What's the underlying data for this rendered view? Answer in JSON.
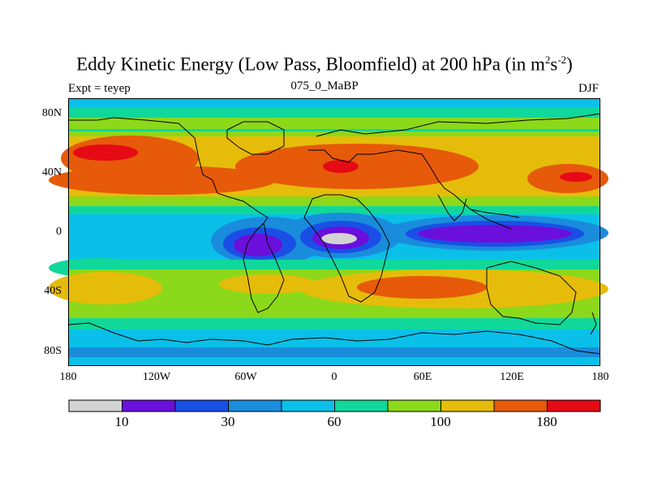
{
  "title": {
    "main": "Eddy Kinetic Energy (Low Pass, Bloomfield) at 200 hPa (in m",
    "sup1": "2",
    "mid": "s",
    "sup2": "-2",
    "close": ")"
  },
  "labels": {
    "left": "Expt = teyep",
    "center": "075_0_MaBP",
    "right": "DJF"
  },
  "axes": {
    "y_ticks": [
      "80N",
      "40N",
      "0",
      "40S",
      "80S"
    ],
    "x_ticks": [
      "180",
      "120W",
      "60W",
      "0",
      "60E",
      "120E",
      "180"
    ]
  },
  "colorbar": {
    "colors": [
      "#d3d3d3",
      "#6a0fdc",
      "#1a4fe6",
      "#1a8cdc",
      "#0ac0e8",
      "#10d89a",
      "#8cd81a",
      "#e6bc0a",
      "#e65a0a",
      "#e60a14"
    ],
    "labels": [
      "10",
      "30",
      "60",
      "100",
      "180"
    ]
  }
}
